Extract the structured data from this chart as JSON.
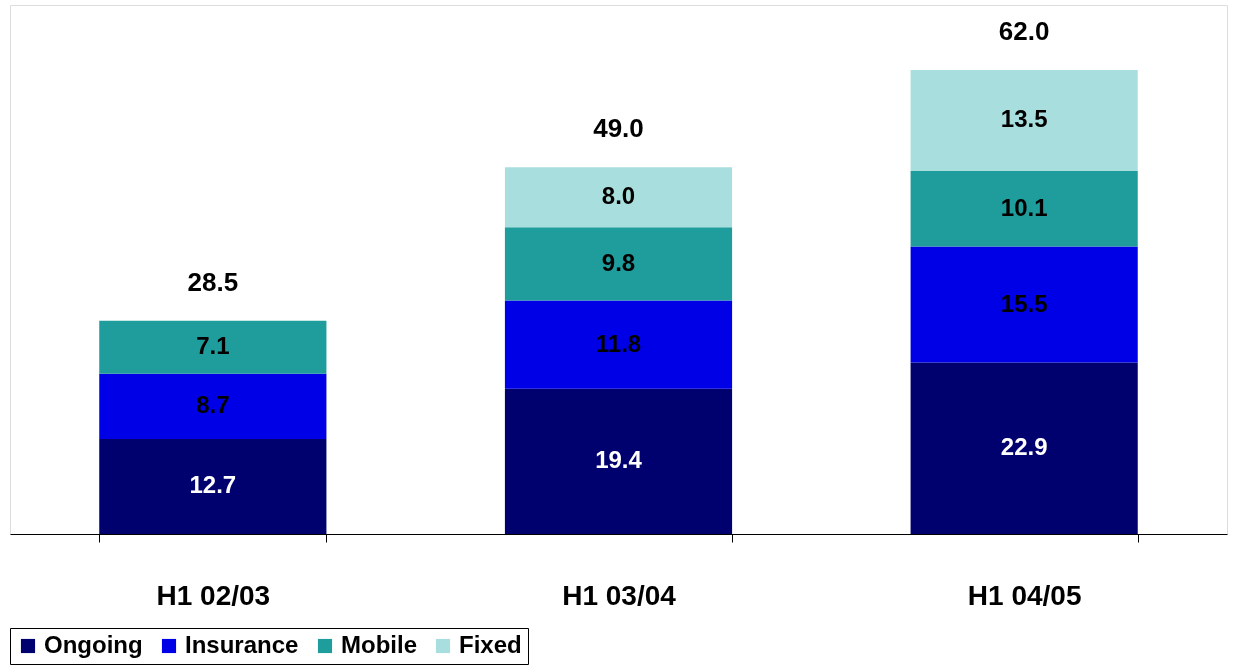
{
  "chart_data": {
    "type": "bar",
    "stacked": true,
    "legend": "bottom",
    "grid": false,
    "categories": [
      "H1 02/03",
      "H1 03/04",
      "H1 04/05"
    ],
    "series": [
      {
        "name": "Ongoing",
        "color": "#00006e",
        "values": [
          12.7,
          19.4,
          22.9
        ],
        "value_labels": [
          "12.7",
          "19.4",
          "22.9"
        ]
      },
      {
        "name": "Insurance",
        "color": "#0000e6",
        "values": [
          8.7,
          11.8,
          15.5
        ],
        "value_labels": [
          "8.7",
          "11.8",
          "15.5"
        ]
      },
      {
        "name": "Mobile",
        "color": "#1f9c9c",
        "values": [
          7.1,
          9.8,
          10.1
        ],
        "value_labels": [
          "7.1",
          "9.8",
          "10.1"
        ]
      },
      {
        "name": "Fixed",
        "color": "#a9dede",
        "values": [
          null,
          8.0,
          13.5
        ],
        "value_labels": [
          null,
          "8.0",
          "13.5"
        ]
      }
    ],
    "totals": [
      "28.5",
      "49.0",
      "62.0"
    ]
  }
}
